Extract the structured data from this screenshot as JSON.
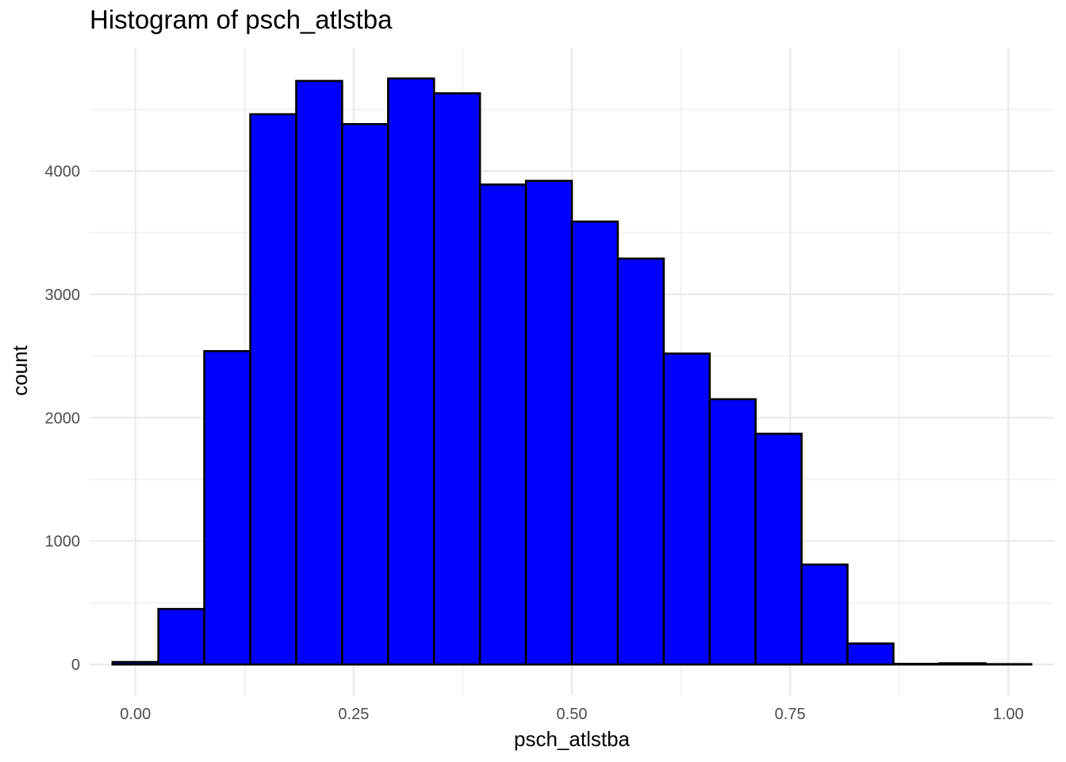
{
  "chart_data": {
    "type": "histogram",
    "title": "Histogram of psch_atlstba",
    "xlabel": "psch_atlstba",
    "ylabel": "count",
    "xlim": [
      -0.0525,
      1.0525
    ],
    "ylim": [
      -250,
      5000
    ],
    "x_ticks": [
      0.0,
      0.25,
      0.5,
      0.75,
      1.0
    ],
    "x_tick_labels": [
      "0.00",
      "0.25",
      "0.50",
      "0.75",
      "1.00"
    ],
    "x_minor_ticks": [
      0.125,
      0.375,
      0.625,
      0.875
    ],
    "y_ticks": [
      0,
      1000,
      2000,
      3000,
      4000
    ],
    "y_tick_labels": [
      "0",
      "1000",
      "2000",
      "3000",
      "4000"
    ],
    "y_minor_ticks": [
      500,
      1500,
      2500,
      3500,
      4500
    ],
    "bin_width": 0.05263,
    "bins": [
      {
        "x0": -0.0263,
        "x1": 0.0263,
        "count": 20
      },
      {
        "x0": 0.0263,
        "x1": 0.0789,
        "count": 450
      },
      {
        "x0": 0.0789,
        "x1": 0.1316,
        "count": 2540
      },
      {
        "x0": 0.1316,
        "x1": 0.1842,
        "count": 4460
      },
      {
        "x0": 0.1842,
        "x1": 0.2368,
        "count": 4730
      },
      {
        "x0": 0.2368,
        "x1": 0.2895,
        "count": 4380
      },
      {
        "x0": 0.2895,
        "x1": 0.3421,
        "count": 4750
      },
      {
        "x0": 0.3421,
        "x1": 0.3947,
        "count": 4630
      },
      {
        "x0": 0.3947,
        "x1": 0.4474,
        "count": 3890
      },
      {
        "x0": 0.4474,
        "x1": 0.5,
        "count": 3920
      },
      {
        "x0": 0.5,
        "x1": 0.5526,
        "count": 3590
      },
      {
        "x0": 0.5526,
        "x1": 0.6053,
        "count": 3290
      },
      {
        "x0": 0.6053,
        "x1": 0.6579,
        "count": 2520
      },
      {
        "x0": 0.6579,
        "x1": 0.7105,
        "count": 2150
      },
      {
        "x0": 0.7105,
        "x1": 0.7632,
        "count": 1870
      },
      {
        "x0": 0.7632,
        "x1": 0.8158,
        "count": 810
      },
      {
        "x0": 0.8158,
        "x1": 0.8684,
        "count": 170
      },
      {
        "x0": 0.8684,
        "x1": 0.9211,
        "count": 5
      },
      {
        "x0": 0.9211,
        "x1": 0.9737,
        "count": 10
      },
      {
        "x0": 0.9737,
        "x1": 1.0263,
        "count": 3
      }
    ],
    "fill_color": "#0000ff",
    "outline_color": "#000000",
    "grid": true,
    "grid_color": "#ebebeb",
    "legend": "none"
  }
}
